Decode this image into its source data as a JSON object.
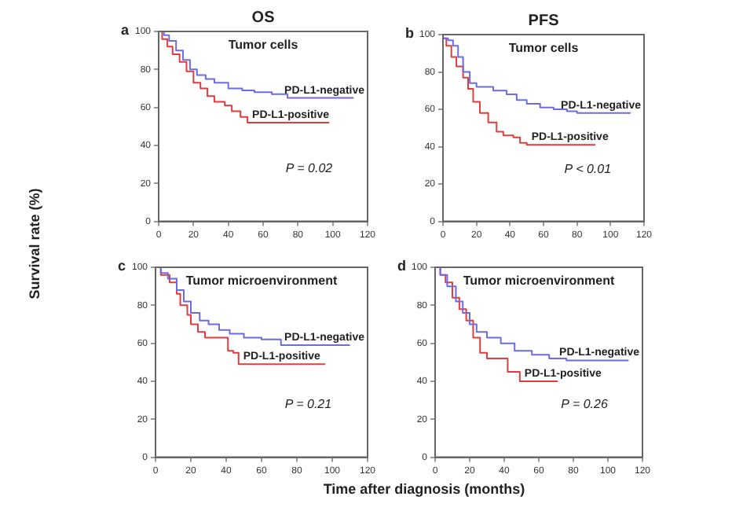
{
  "chart_data": [
    {
      "type": "step",
      "title": "OS",
      "subtitle": "Tumor cells",
      "ylabel": "Survival rate (%)",
      "annotations": [
        "a",
        "P = 0.02"
      ],
      "xlim": [
        0,
        120
      ],
      "xticks": [
        0,
        20,
        40,
        60,
        80,
        100,
        120
      ],
      "ylim": [
        0,
        100
      ],
      "yticks": [
        0,
        20,
        40,
        60,
        80,
        100
      ],
      "grid": false,
      "marker": "none",
      "series": [
        {
          "name": "PD-L1-negative",
          "color": "#6b6be6",
          "x": [
            0,
            3,
            6,
            10,
            14,
            18,
            22,
            27,
            32,
            40,
            48,
            55,
            65,
            74,
            80,
            112
          ],
          "values": [
            100,
            98,
            95,
            90,
            85,
            80,
            77,
            75,
            73,
            70,
            69,
            68,
            67,
            65,
            65,
            65
          ]
        },
        {
          "name": "PD-L1-positive",
          "color": "#e23c3c",
          "x": [
            0,
            2,
            5,
            8,
            12,
            16,
            20,
            24,
            28,
            32,
            38,
            42,
            47,
            51,
            60,
            98
          ],
          "values": [
            100,
            96,
            92,
            88,
            84,
            79,
            73,
            70,
            66,
            63,
            61,
            58,
            55,
            52,
            52,
            52
          ]
        }
      ]
    },
    {
      "type": "step",
      "title": "PFS",
      "subtitle": "Tumor cells",
      "annotations": [
        "b",
        "P < 0.01"
      ],
      "xlim": [
        0,
        120
      ],
      "xticks": [
        0,
        20,
        40,
        60,
        80,
        100,
        120
      ],
      "ylim": [
        0,
        100
      ],
      "yticks": [
        0,
        20,
        40,
        60,
        80,
        100
      ],
      "grid": false,
      "marker": "none",
      "series": [
        {
          "name": "PD-L1-negative",
          "color": "#6b6be6",
          "x": [
            0,
            3,
            6,
            9,
            12,
            16,
            20,
            30,
            38,
            44,
            50,
            58,
            66,
            74,
            80,
            112
          ],
          "values": [
            98,
            97,
            94,
            88,
            80,
            74,
            72,
            70,
            68,
            65,
            63,
            61,
            60,
            59,
            58,
            58
          ]
        },
        {
          "name": "PD-L1-positive",
          "color": "#e23c3c",
          "x": [
            0,
            2,
            5,
            8,
            12,
            15,
            18,
            22,
            27,
            32,
            36,
            42,
            46,
            50,
            60,
            91
          ],
          "values": [
            98,
            94,
            88,
            83,
            77,
            71,
            64,
            58,
            53,
            48,
            46,
            45,
            42,
            41,
            41,
            41
          ]
        }
      ]
    },
    {
      "type": "step",
      "subtitle": "Tumor microenvironment",
      "xlabel": "Time after diagnosis (months)",
      "annotations": [
        "c",
        "P = 0.21"
      ],
      "xlim": [
        0,
        120
      ],
      "xticks": [
        0,
        20,
        40,
        60,
        80,
        100,
        120
      ],
      "ylim": [
        0,
        100
      ],
      "yticks": [
        0,
        20,
        40,
        60,
        80,
        100
      ],
      "grid": false,
      "marker": "none",
      "series": [
        {
          "name": "PD-L1-negative",
          "color": "#6b6be6",
          "x": [
            0,
            3,
            7,
            12,
            16,
            20,
            25,
            30,
            36,
            42,
            50,
            60,
            71,
            80,
            110
          ],
          "values": [
            100,
            97,
            94,
            88,
            82,
            76,
            72,
            70,
            67,
            65,
            63,
            62,
            59,
            59,
            59
          ]
        },
        {
          "name": "PD-L1-positive",
          "color": "#e23c3c",
          "x": [
            0,
            3,
            8,
            12,
            14,
            18,
            20,
            24,
            28,
            38,
            41,
            44,
            47,
            60,
            96
          ],
          "values": [
            100,
            96,
            92,
            86,
            80,
            75,
            70,
            66,
            63,
            63,
            56,
            55,
            49,
            49,
            49
          ]
        }
      ]
    },
    {
      "type": "step",
      "subtitle": "Tumor microenvironment",
      "annotations": [
        "d",
        "P = 0.26"
      ],
      "xlim": [
        0,
        120
      ],
      "xticks": [
        0,
        20,
        40,
        60,
        80,
        100,
        120
      ],
      "ylim": [
        0,
        100
      ],
      "yticks": [
        0,
        20,
        40,
        60,
        80,
        100
      ],
      "grid": false,
      "marker": "none",
      "series": [
        {
          "name": "PD-L1-negative",
          "color": "#6b6be6",
          "x": [
            0,
            3,
            7,
            12,
            16,
            20,
            24,
            30,
            38,
            46,
            56,
            66,
            76,
            90,
            112
          ],
          "values": [
            100,
            96,
            90,
            82,
            76,
            70,
            66,
            63,
            60,
            56,
            54,
            52,
            51,
            51,
            51
          ]
        },
        {
          "name": "PD-L1-positive",
          "color": "#e23c3c",
          "x": [
            0,
            3,
            6,
            10,
            14,
            18,
            22,
            26,
            30,
            40,
            42,
            49,
            60,
            71
          ],
          "values": [
            100,
            96,
            92,
            84,
            78,
            72,
            63,
            55,
            52,
            52,
            45,
            40,
            40,
            40
          ]
        }
      ]
    }
  ]
}
